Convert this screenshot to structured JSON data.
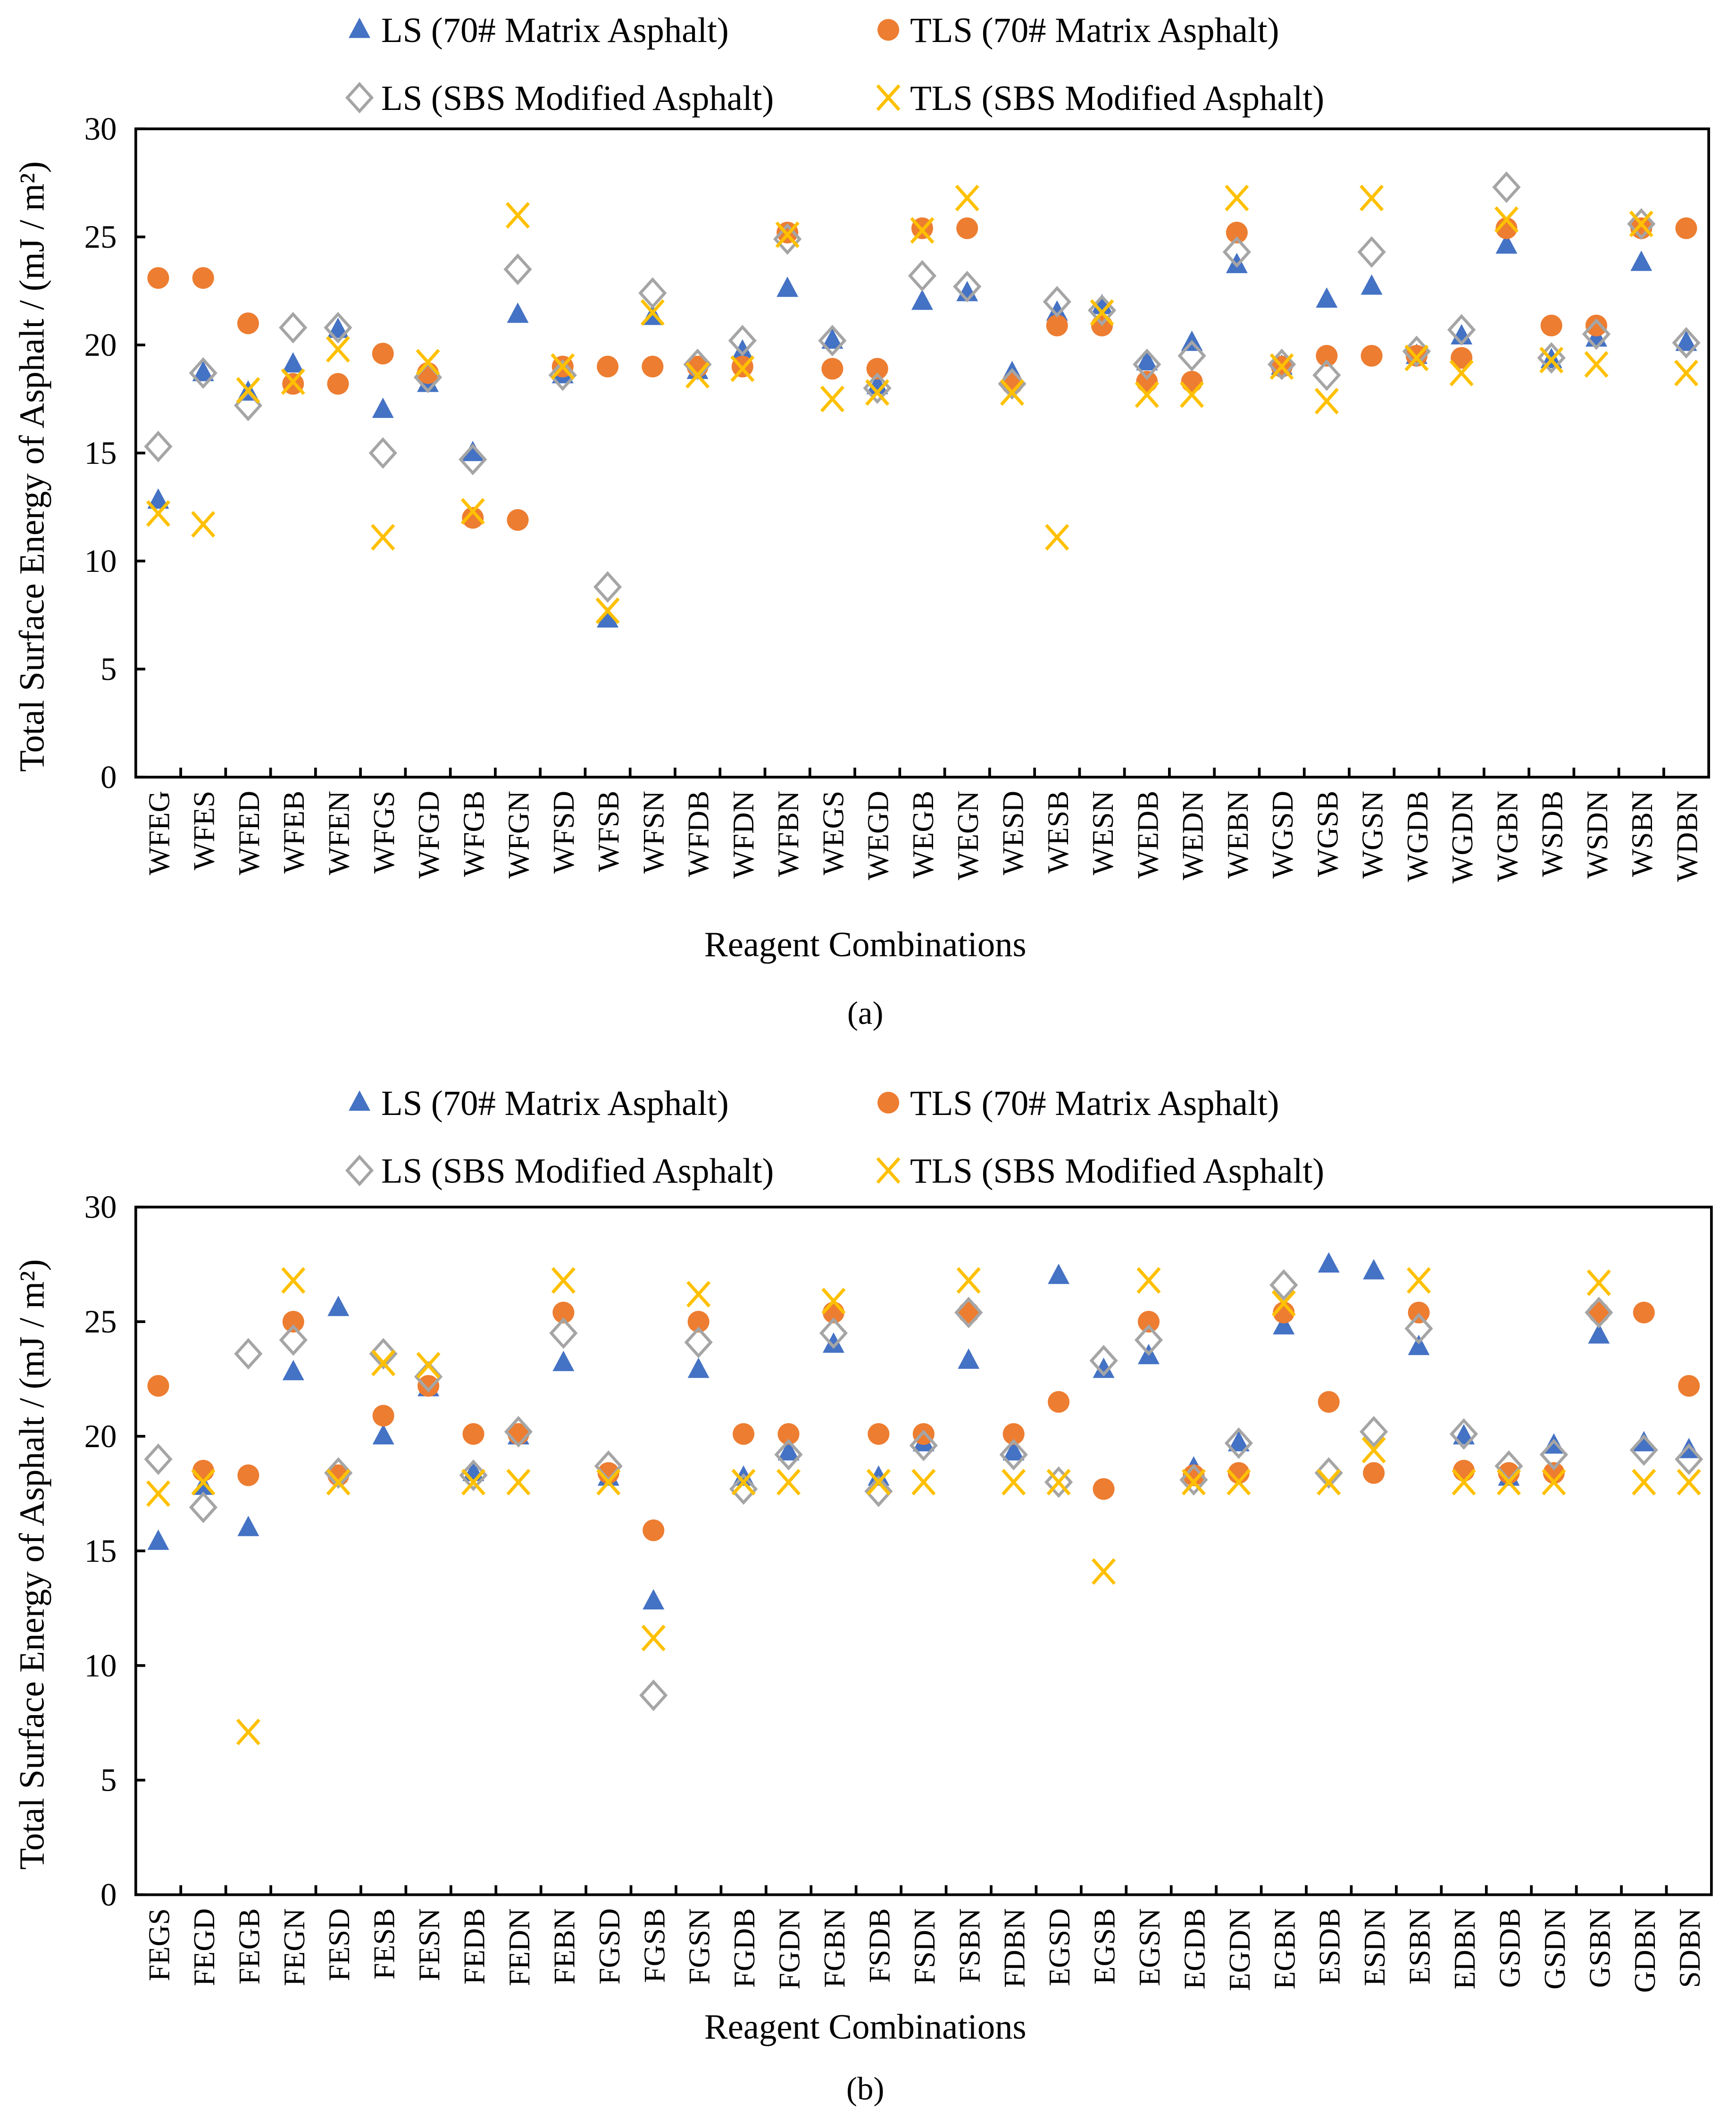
{
  "colors": {
    "ls70": "#4472C4",
    "tls70": "#ED7D31",
    "lssbs": "#A5A5A5",
    "tlssbs": "#FFC000"
  },
  "chart_data": [
    {
      "type": "scatter",
      "panel_label": "(a)",
      "xlabel": "Reagent Combinations",
      "ylabel": "Total Surface Energy of Asphalt / (mJ / m²)",
      "ylim": [
        0,
        30
      ],
      "yticks": [
        0,
        5,
        10,
        15,
        20,
        25,
        30
      ],
      "legend_position": "top",
      "categories": [
        "WFEG",
        "WFES",
        "WFED",
        "WFEB",
        "WFEN",
        "WFGS",
        "WFGD",
        "WFGB",
        "WFGN",
        "WFSD",
        "WFSB",
        "WFSN",
        "WFDB",
        "WFDN",
        "WFBN",
        "WEGS",
        "WEGD",
        "WEGB",
        "WEGN",
        "WESD",
        "WESB",
        "WESN",
        "WEDB",
        "WEDN",
        "WEBN",
        "WGSD",
        "WGSB",
        "WGSN",
        "WGDB",
        "WGDN",
        "WGBN",
        "WSDB",
        "WSDN",
        "WSBN",
        "WDBN"
      ],
      "series": [
        {
          "name": "LS (70# Matrix Asphalt)",
          "marker": "triangle",
          "values": [
            12.8,
            18.7,
            17.8,
            19.1,
            20.7,
            17.0,
            18.2,
            15.0,
            21.4,
            18.6,
            7.3,
            21.3,
            18.8,
            19.7,
            22.6,
            20.2,
            18.1,
            22.0,
            22.4,
            18.7,
            21.5,
            21.8,
            19.2,
            20.1,
            23.7,
            19.0,
            22.1,
            22.7,
            19.5,
            20.4,
            24.6,
            19.3,
            20.3,
            23.8,
            20.1
          ]
        },
        {
          "name": "TLS (70# Matrix Asphalt)",
          "marker": "circle",
          "values": [
            23.1,
            23.1,
            21.0,
            18.2,
            18.2,
            19.6,
            18.7,
            12.0,
            11.9,
            19.0,
            19.0,
            19.0,
            19.0,
            19.0,
            25.2,
            18.9,
            18.9,
            25.4,
            25.4,
            18.2,
            20.9,
            20.9,
            18.3,
            18.3,
            25.2,
            19.0,
            19.5,
            19.5,
            19.5,
            19.4,
            25.4,
            20.9,
            20.9,
            25.4,
            25.4
          ]
        },
        {
          "name": "LS (SBS Modified Asphalt)",
          "marker": "diamond",
          "values": [
            15.3,
            18.7,
            17.2,
            20.8,
            20.8,
            15.0,
            18.5,
            14.7,
            23.5,
            18.6,
            8.8,
            22.4,
            19.1,
            20.2,
            24.9,
            20.2,
            18.0,
            23.2,
            22.7,
            18.2,
            22.0,
            21.6,
            19.1,
            19.5,
            24.3,
            19.1,
            18.6,
            24.3,
            19.7,
            20.7,
            27.3,
            19.4,
            20.5,
            25.6,
            20.1
          ]
        },
        {
          "name": "TLS (SBS Modified Asphalt)",
          "marker": "x",
          "values": [
            12.2,
            11.7,
            17.9,
            18.3,
            19.8,
            11.1,
            19.2,
            12.3,
            26.0,
            19.0,
            7.7,
            21.5,
            18.6,
            18.9,
            25.1,
            17.5,
            17.8,
            25.3,
            26.8,
            17.8,
            11.1,
            21.5,
            17.7,
            17.7,
            26.8,
            19.0,
            17.4,
            26.8,
            19.4,
            18.7,
            25.8,
            19.3,
            19.1,
            25.6,
            18.7
          ]
        }
      ]
    },
    {
      "type": "scatter",
      "panel_label": "(b)",
      "xlabel": "Reagent Combinations",
      "ylabel": "Total Surface Energy of Asphalt / (mJ / m²)",
      "ylim": [
        0,
        30
      ],
      "yticks": [
        0,
        5,
        10,
        15,
        20,
        25,
        30
      ],
      "legend_position": "top",
      "categories": [
        "FEGS",
        "FEGD",
        "FEGB",
        "FEGN",
        "FESD",
        "FESB",
        "FESN",
        "FEDB",
        "FEDN",
        "FEBN",
        "FGSD",
        "FGSB",
        "FGSN",
        "FGDB",
        "FGDN",
        "FGBN",
        "FSDB",
        "FSDN",
        "FSBN",
        "FDBN",
        "EGSD",
        "EGSB",
        "EGSN",
        "EGDB",
        "EGDN",
        "EGBN",
        "ESDB",
        "ESDN",
        "ESBN",
        "EDBN",
        "GSDB",
        "GSDN",
        "GSBN",
        "GDBN",
        "SDBN"
      ],
      "series": [
        {
          "name": "LS (70# Matrix Asphalt)",
          "marker": "triangle",
          "values": [
            15.4,
            17.8,
            16.0,
            22.8,
            25.6,
            20.0,
            22.1,
            18.4,
            20.0,
            23.2,
            18.2,
            12.8,
            22.9,
            18.2,
            19.3,
            24.0,
            18.2,
            19.7,
            23.3,
            19.3,
            27.0,
            22.9,
            23.5,
            18.6,
            19.7,
            24.8,
            27.5,
            27.2,
            23.9,
            20.0,
            18.2,
            19.6,
            24.4,
            19.7,
            19.4
          ]
        },
        {
          "name": "TLS (70# Matrix Asphalt)",
          "marker": "circle",
          "values": [
            22.2,
            18.5,
            18.3,
            25.0,
            18.3,
            20.9,
            22.2,
            20.1,
            20.1,
            25.4,
            18.4,
            15.9,
            25.0,
            20.1,
            20.1,
            25.4,
            20.1,
            20.1,
            25.4,
            20.1,
            21.5,
            17.7,
            25.0,
            18.3,
            18.4,
            25.4,
            21.5,
            18.4,
            25.4,
            18.5,
            18.4,
            18.4,
            25.4,
            25.4,
            22.2
          ]
        },
        {
          "name": "LS (SBS Modified Asphalt)",
          "marker": "diamond",
          "values": [
            19.0,
            16.9,
            23.6,
            24.2,
            18.4,
            23.6,
            22.6,
            18.3,
            20.2,
            24.5,
            18.7,
            8.7,
            24.1,
            17.7,
            19.2,
            24.5,
            17.6,
            19.6,
            25.4,
            19.2,
            18.0,
            23.3,
            24.2,
            18.1,
            19.7,
            26.6,
            18.4,
            20.2,
            24.7,
            20.1,
            18.7,
            19.2,
            25.4,
            19.4,
            19.0
          ]
        },
        {
          "name": "TLS (SBS Modified Asphalt)",
          "marker": "x",
          "values": [
            17.5,
            18.0,
            7.1,
            26.8,
            18.0,
            23.2,
            23.1,
            18.0,
            18.0,
            26.8,
            18.0,
            11.2,
            26.2,
            18.0,
            18.0,
            25.9,
            18.0,
            18.0,
            26.8,
            18.0,
            18.0,
            14.1,
            26.8,
            18.0,
            18.0,
            25.8,
            18.0,
            19.4,
            26.8,
            18.0,
            18.0,
            18.0,
            26.7,
            18.0,
            18.0
          ]
        }
      ]
    }
  ]
}
